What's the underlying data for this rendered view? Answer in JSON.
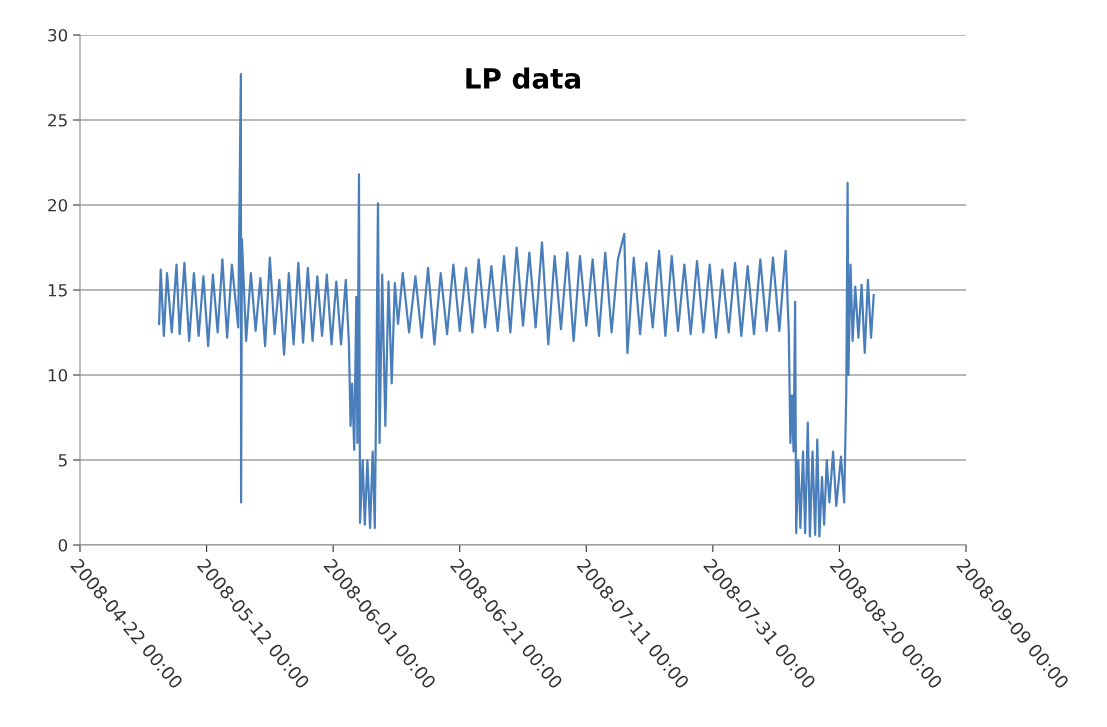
{
  "chart_data": {
    "type": "line",
    "title": "LP data",
    "xlim": [
      "2008-04-22",
      "2008-09-09"
    ],
    "xticks": [
      {
        "value": "2008-04-22",
        "label": "2008-04-22 00:00"
      },
      {
        "value": "2008-05-12",
        "label": "2008-05-12 00:00"
      },
      {
        "value": "2008-06-01",
        "label": "2008-06-01 00:00"
      },
      {
        "value": "2008-06-21",
        "label": "2008-06-21 00:00"
      },
      {
        "value": "2008-07-11",
        "label": "2008-07-11 00:00"
      },
      {
        "value": "2008-07-31",
        "label": "2008-07-31 00:00"
      },
      {
        "value": "2008-08-20",
        "label": "2008-08-20 00:00"
      },
      {
        "value": "2008-09-09",
        "label": "2008-09-09 00:00"
      }
    ],
    "ylim": [
      0,
      30
    ],
    "yticks": [
      0,
      5,
      10,
      15,
      20,
      25,
      30
    ],
    "grid": "y",
    "legend": false,
    "marker": "none",
    "line_style": "solid",
    "series": [
      {
        "color": "#4a7ebb",
        "x": [
          "2008-05-04T12:00",
          "2008-05-04T18:00",
          "2008-05-05T06:00",
          "2008-05-05T18:00",
          "2008-05-06T12:00",
          "2008-05-07T06:00",
          "2008-05-07T18:00",
          "2008-05-08T12:00",
          "2008-05-09T06:00",
          "2008-05-10T00:00",
          "2008-05-10T18:00",
          "2008-05-11T12:00",
          "2008-05-12T06:00",
          "2008-05-13T00:00",
          "2008-05-13T18:00",
          "2008-05-14T12:00",
          "2008-05-15T06:00",
          "2008-05-16T00:00",
          "2008-05-17T00:00",
          "2008-05-17T10:00",
          "2008-05-17T11:00",
          "2008-05-17T14:00",
          "2008-05-18T06:00",
          "2008-05-19T00:00",
          "2008-05-19T18:00",
          "2008-05-20T12:00",
          "2008-05-21T06:00",
          "2008-05-22T00:00",
          "2008-05-22T18:00",
          "2008-05-23T12:00",
          "2008-05-24T06:00",
          "2008-05-25T00:00",
          "2008-05-25T18:00",
          "2008-05-26T12:00",
          "2008-05-27T06:00",
          "2008-05-28T00:00",
          "2008-05-28T18:00",
          "2008-05-29T12:00",
          "2008-05-30T06:00",
          "2008-05-31T00:00",
          "2008-05-31T18:00",
          "2008-06-01T12:00",
          "2008-06-02T06:00",
          "2008-06-03T00:00",
          "2008-06-03T12:00",
          "2008-06-03T18:00",
          "2008-06-04T00:00",
          "2008-06-04T08:00",
          "2008-06-04T16:00",
          "2008-06-04T20:00",
          "2008-06-05T02:00",
          "2008-06-05T06:00",
          "2008-06-05T16:00",
          "2008-06-06T00:00",
          "2008-06-06T10:00",
          "2008-06-06T20:00",
          "2008-06-07T06:00",
          "2008-06-07T14:00",
          "2008-06-07T20:00",
          "2008-06-08T02:00",
          "2008-06-08T08:00",
          "2008-06-08T18:00",
          "2008-06-09T06:00",
          "2008-06-09T18:00",
          "2008-06-10T06:00",
          "2008-06-10T18:00",
          "2008-06-11T06:00",
          "2008-06-12T00:00",
          "2008-06-13T00:00",
          "2008-06-14T00:00",
          "2008-06-15T00:00",
          "2008-06-16T00:00",
          "2008-06-17T00:00",
          "2008-06-18T00:00",
          "2008-06-19T00:00",
          "2008-06-20T00:00",
          "2008-06-21T00:00",
          "2008-06-22T00:00",
          "2008-06-23T00:00",
          "2008-06-24T00:00",
          "2008-06-25T00:00",
          "2008-06-26T00:00",
          "2008-06-27T00:00",
          "2008-06-28T00:00",
          "2008-06-29T00:00",
          "2008-06-30T00:00",
          "2008-07-01T00:00",
          "2008-07-02T00:00",
          "2008-07-03T00:00",
          "2008-07-04T00:00",
          "2008-07-05T00:00",
          "2008-07-06T00:00",
          "2008-07-07T00:00",
          "2008-07-08T00:00",
          "2008-07-09T00:00",
          "2008-07-10T00:00",
          "2008-07-11T00:00",
          "2008-07-12T00:00",
          "2008-07-13T00:00",
          "2008-07-14T00:00",
          "2008-07-15T00:00",
          "2008-07-16T00:00",
          "2008-07-17T00:00",
          "2008-07-17T12:00",
          "2008-07-18T12:00",
          "2008-07-19T12:00",
          "2008-07-20T12:00",
          "2008-07-21T12:00",
          "2008-07-22T12:00",
          "2008-07-23T12:00",
          "2008-07-24T12:00",
          "2008-07-25T12:00",
          "2008-07-26T12:00",
          "2008-07-27T12:00",
          "2008-07-28T12:00",
          "2008-07-29T12:00",
          "2008-07-30T12:00",
          "2008-07-31T12:00",
          "2008-08-01T12:00",
          "2008-08-02T12:00",
          "2008-08-03T12:00",
          "2008-08-04T12:00",
          "2008-08-05T12:00",
          "2008-08-06T12:00",
          "2008-08-07T12:00",
          "2008-08-08T12:00",
          "2008-08-09T12:00",
          "2008-08-10T12:00",
          "2008-08-11T12:00",
          "2008-08-12T00:00",
          "2008-08-12T06:00",
          "2008-08-12T12:00",
          "2008-08-12T18:00",
          "2008-08-13T00:00",
          "2008-08-13T04:00",
          "2008-08-13T12:00",
          "2008-08-13T20:00",
          "2008-08-14T06:00",
          "2008-08-14T14:00",
          "2008-08-15T00:00",
          "2008-08-15T08:00",
          "2008-08-15T18:00",
          "2008-08-16T04:00",
          "2008-08-16T12:00",
          "2008-08-16T20:00",
          "2008-08-17T06:00",
          "2008-08-17T14:00",
          "2008-08-18T00:00",
          "2008-08-18T10:00",
          "2008-08-19T00:00",
          "2008-08-19T12:00",
          "2008-08-20T06:00",
          "2008-08-20T18:00",
          "2008-08-21T02:00",
          "2008-08-21T07:00",
          "2008-08-21T10:00",
          "2008-08-21T18:00",
          "2008-08-22T02:00",
          "2008-08-22T12:00",
          "2008-08-23T00:00",
          "2008-08-23T12:00",
          "2008-08-24T00:00",
          "2008-08-24T12:00",
          "2008-08-25T00:00",
          "2008-08-25T10:00"
        ],
        "values": [
          13.0,
          16.2,
          12.3,
          16.0,
          12.5,
          16.5,
          12.4,
          16.6,
          12.0,
          16.0,
          12.3,
          15.8,
          11.7,
          15.9,
          12.5,
          16.8,
          12.2,
          16.5,
          12.8,
          27.7,
          2.5,
          18.0,
          12.0,
          16.0,
          12.6,
          15.7,
          11.7,
          16.9,
          12.4,
          15.6,
          11.2,
          16.0,
          11.8,
          16.6,
          11.9,
          16.3,
          12.0,
          15.8,
          12.3,
          15.9,
          11.8,
          15.5,
          11.8,
          15.6,
          11.8,
          7.0,
          9.5,
          5.6,
          14.6,
          6.0,
          21.8,
          1.3,
          5.0,
          1.2,
          5.0,
          1.0,
          5.5,
          1.0,
          10.0,
          20.1,
          6.0,
          15.9,
          7.0,
          15.5,
          9.5,
          15.4,
          13.0,
          16.0,
          12.5,
          15.8,
          12.2,
          16.3,
          11.8,
          16.0,
          12.4,
          16.5,
          12.6,
          16.3,
          12.5,
          16.8,
          12.8,
          16.4,
          12.6,
          17.0,
          12.5,
          17.5,
          12.9,
          17.2,
          12.8,
          17.8,
          11.8,
          17.0,
          12.7,
          17.2,
          12.0,
          17.0,
          12.9,
          16.8,
          12.3,
          17.2,
          12.5,
          16.8,
          18.3,
          11.3,
          16.9,
          12.4,
          16.6,
          12.8,
          17.3,
          12.3,
          17.0,
          12.6,
          16.5,
          12.4,
          16.7,
          12.5,
          16.5,
          12.2,
          16.2,
          12.5,
          16.6,
          12.3,
          16.4,
          12.4,
          16.8,
          12.6,
          16.9,
          12.6,
          17.3,
          12.5,
          6.0,
          8.8,
          5.5,
          14.3,
          0.7,
          5.0,
          1.0,
          5.5,
          0.7,
          7.2,
          0.5,
          5.5,
          0.6,
          6.2,
          0.5,
          4.0,
          1.2,
          5.0,
          2.5,
          5.5,
          2.3,
          5.2,
          2.5,
          9.0,
          21.3,
          10.0,
          16.5,
          12.0,
          15.2,
          12.2,
          15.3,
          11.3,
          15.6,
          12.2,
          14.7
        ]
      }
    ]
  }
}
